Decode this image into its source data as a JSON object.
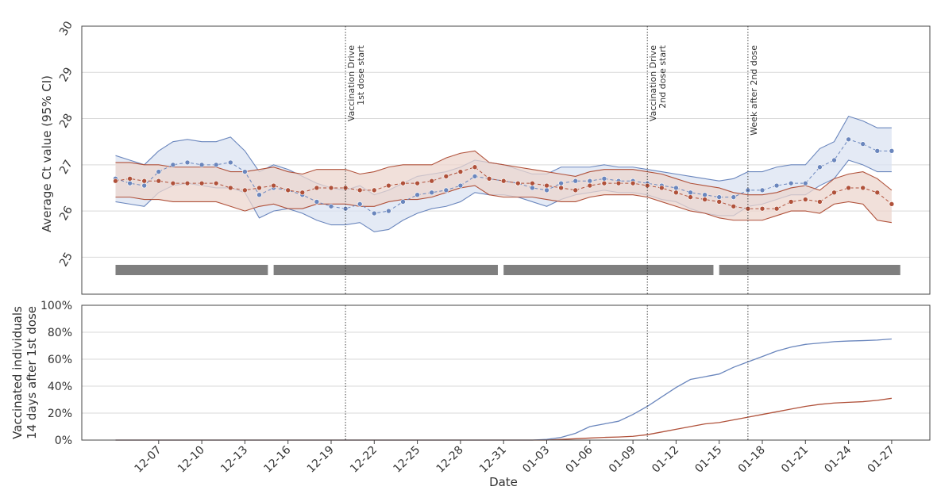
{
  "chart_data": [
    {
      "type": "line",
      "ylabel": "Average Ct value (95% CI)",
      "ylim": [
        24.2,
        30
      ],
      "yticks": [
        "25",
        "26",
        "27",
        "28",
        "29",
        "30"
      ],
      "grid": true,
      "colors": {
        "blue": "#6a86bd",
        "red": "#b0513a",
        "blue_band": "#dbe3f2",
        "red_band": "#ecd5cd",
        "bar": "#7f7f7f"
      },
      "x": [
        "12-04",
        "12-05",
        "12-06",
        "12-07",
        "12-08",
        "12-09",
        "12-10",
        "12-11",
        "12-12",
        "12-13",
        "12-14",
        "12-15",
        "12-16",
        "12-17",
        "12-18",
        "12-19",
        "12-20",
        "12-21",
        "12-22",
        "12-23",
        "12-24",
        "12-25",
        "12-26",
        "12-27",
        "12-28",
        "12-29",
        "12-30",
        "12-31",
        "01-01",
        "01-02",
        "01-03",
        "01-04",
        "01-05",
        "01-06",
        "01-07",
        "01-08",
        "01-09",
        "01-10",
        "01-11",
        "01-12",
        "01-13",
        "01-14",
        "01-15",
        "01-16",
        "01-17",
        "01-18",
        "01-19",
        "01-20",
        "01-21",
        "01-22",
        "01-23",
        "01-24",
        "01-25",
        "01-26",
        "01-27"
      ],
      "series": [
        {
          "color": "blue",
          "values": [
            26.7,
            26.6,
            26.55,
            26.85,
            27.0,
            27.05,
            27.0,
            27.0,
            27.05,
            26.85,
            26.35,
            26.5,
            26.45,
            26.35,
            26.2,
            26.1,
            26.05,
            26.15,
            25.95,
            26.0,
            26.2,
            26.35,
            26.4,
            26.45,
            26.55,
            26.75,
            26.7,
            26.65,
            26.6,
            26.5,
            26.45,
            26.6,
            26.65,
            26.65,
            26.7,
            26.65,
            26.65,
            26.6,
            26.55,
            26.5,
            26.4,
            26.35,
            26.3,
            26.3,
            26.45,
            26.45,
            26.55,
            26.6,
            26.6,
            26.95,
            27.1,
            27.55,
            27.45,
            27.3,
            27.3
          ],
          "ci_lower": [
            26.2,
            26.15,
            26.1,
            26.4,
            26.55,
            26.6,
            26.55,
            26.5,
            26.5,
            26.4,
            25.85,
            26.0,
            26.05,
            25.95,
            25.8,
            25.7,
            25.7,
            25.75,
            25.55,
            25.6,
            25.8,
            25.95,
            26.05,
            26.1,
            26.2,
            26.4,
            26.35,
            26.35,
            26.3,
            26.2,
            26.1,
            26.25,
            26.35,
            26.4,
            26.45,
            26.4,
            26.4,
            26.35,
            26.25,
            26.2,
            26.05,
            25.95,
            25.9,
            25.9,
            26.1,
            26.15,
            26.25,
            26.35,
            26.35,
            26.55,
            26.7,
            27.1,
            27.0,
            26.85,
            26.85
          ],
          "ci_upper": [
            27.2,
            27.1,
            27.0,
            27.3,
            27.5,
            27.55,
            27.5,
            27.5,
            27.6,
            27.3,
            26.85,
            27.0,
            26.9,
            26.75,
            26.6,
            26.5,
            26.45,
            26.55,
            26.35,
            26.45,
            26.6,
            26.75,
            26.8,
            26.85,
            26.95,
            27.1,
            27.05,
            27.0,
            26.9,
            26.8,
            26.8,
            26.95,
            26.95,
            26.95,
            27.0,
            26.95,
            26.95,
            26.9,
            26.85,
            26.8,
            26.75,
            26.7,
            26.65,
            26.7,
            26.85,
            26.85,
            26.95,
            27.0,
            27.0,
            27.35,
            27.5,
            28.05,
            27.95,
            27.8,
            27.8
          ]
        },
        {
          "color": "red",
          "values": [
            26.65,
            26.7,
            26.65,
            26.65,
            26.6,
            26.6,
            26.6,
            26.6,
            26.5,
            26.45,
            26.5,
            26.55,
            26.45,
            26.4,
            26.5,
            26.5,
            26.5,
            26.45,
            26.45,
            26.55,
            26.6,
            26.6,
            26.65,
            26.75,
            26.85,
            26.95,
            26.7,
            26.65,
            26.6,
            26.6,
            26.55,
            26.5,
            26.45,
            26.55,
            26.6,
            26.6,
            26.6,
            26.55,
            26.5,
            26.4,
            26.3,
            26.25,
            26.2,
            26.1,
            26.05,
            26.05,
            26.05,
            26.2,
            26.25,
            26.2,
            26.4,
            26.5,
            26.5,
            26.4,
            26.15
          ],
          "ci_lower": [
            26.3,
            26.3,
            26.25,
            26.25,
            26.2,
            26.2,
            26.2,
            26.2,
            26.1,
            26.0,
            26.1,
            26.15,
            26.05,
            26.05,
            26.15,
            26.15,
            26.15,
            26.1,
            26.1,
            26.2,
            26.25,
            26.25,
            26.3,
            26.4,
            26.5,
            26.55,
            26.35,
            26.3,
            26.3,
            26.3,
            26.25,
            26.2,
            26.2,
            26.3,
            26.35,
            26.35,
            26.35,
            26.3,
            26.2,
            26.1,
            26.0,
            25.95,
            25.85,
            25.8,
            25.8,
            25.8,
            25.9,
            26.0,
            26.0,
            25.95,
            26.15,
            26.2,
            26.15,
            25.8,
            25.75
          ],
          "ci_upper": [
            27.05,
            27.05,
            27.0,
            27.0,
            26.95,
            26.95,
            26.95,
            26.95,
            26.85,
            26.85,
            26.9,
            26.95,
            26.85,
            26.8,
            26.9,
            26.9,
            26.9,
            26.8,
            26.85,
            26.95,
            27.0,
            27.0,
            27.0,
            27.15,
            27.25,
            27.3,
            27.05,
            27.0,
            26.95,
            26.9,
            26.85,
            26.8,
            26.75,
            26.85,
            26.9,
            26.9,
            26.9,
            26.85,
            26.8,
            26.7,
            26.6,
            26.55,
            26.5,
            26.4,
            26.35,
            26.35,
            26.4,
            26.5,
            26.55,
            26.45,
            26.7,
            26.8,
            26.85,
            26.7,
            26.45
          ]
        }
      ],
      "period_bars": [
        {
          "start": "12-04",
          "end": "12-14"
        },
        {
          "start": "12-15",
          "end": "12-30"
        },
        {
          "start": "12-31",
          "end": "01-14"
        },
        {
          "start": "01-15",
          "end": "01-27"
        }
      ],
      "annotations": [
        {
          "date": "12-20",
          "lines": [
            "Vaccination Drive",
            "1st dose start"
          ]
        },
        {
          "date": "01-10",
          "lines": [
            "Vaccination Drive",
            "2nd dose start"
          ]
        },
        {
          "date": "01-17",
          "lines": [
            "Week after 2nd dose"
          ]
        }
      ]
    },
    {
      "type": "line",
      "ylabel_lines": [
        "Vaccinated individuals",
        "14 days after 1st dose"
      ],
      "xlabel": "Date",
      "ylim": [
        0,
        100
      ],
      "yticks": [
        "0%",
        "20%",
        "40%",
        "60%",
        "80%",
        "100%"
      ],
      "xticks": [
        "12-07",
        "12-10",
        "12-13",
        "12-16",
        "12-19",
        "12-22",
        "12-25",
        "12-28",
        "12-31",
        "01-03",
        "01-06",
        "01-09",
        "01-12",
        "01-15",
        "01-18",
        "01-21",
        "01-24",
        "01-27"
      ],
      "grid": true,
      "x": [
        "01-01",
        "01-02",
        "01-03",
        "01-04",
        "01-05",
        "01-06",
        "01-07",
        "01-08",
        "01-09",
        "01-10",
        "01-11",
        "01-12",
        "01-13",
        "01-14",
        "01-15",
        "01-16",
        "01-17",
        "01-18",
        "01-19",
        "01-20",
        "01-21",
        "01-22",
        "01-23",
        "01-24",
        "01-25",
        "01-26",
        "01-27"
      ],
      "series": [
        {
          "color": "blue",
          "values": [
            0,
            0,
            0.5,
            2,
            5,
            10,
            12,
            14,
            19,
            25,
            32,
            39,
            45,
            47,
            49,
            54,
            58,
            62,
            66,
            69,
            71,
            72,
            73,
            73.5,
            73.8,
            74.2,
            75
          ]
        },
        {
          "color": "red",
          "values": [
            0,
            0,
            0,
            0.5,
            1,
            1.5,
            2,
            2.3,
            2.8,
            4,
            6,
            8,
            10,
            12,
            13,
            15,
            17,
            19,
            21,
            23,
            25,
            26.5,
            27.5,
            28,
            28.5,
            29.5,
            31
          ]
        }
      ]
    }
  ]
}
